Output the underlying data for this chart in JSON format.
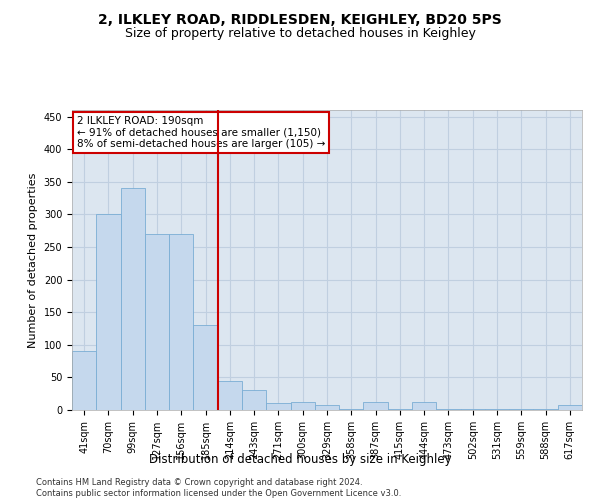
{
  "title": "2, ILKLEY ROAD, RIDDLESDEN, KEIGHLEY, BD20 5PS",
  "subtitle": "Size of property relative to detached houses in Keighley",
  "xlabel": "Distribution of detached houses by size in Keighley",
  "ylabel": "Number of detached properties",
  "categories": [
    "41sqm",
    "70sqm",
    "99sqm",
    "127sqm",
    "156sqm",
    "185sqm",
    "214sqm",
    "243sqm",
    "271sqm",
    "300sqm",
    "329sqm",
    "358sqm",
    "387sqm",
    "415sqm",
    "444sqm",
    "473sqm",
    "502sqm",
    "531sqm",
    "559sqm",
    "588sqm",
    "617sqm"
  ],
  "values": [
    90,
    300,
    340,
    270,
    270,
    130,
    45,
    30,
    10,
    12,
    8,
    1,
    12,
    1,
    12,
    1,
    1,
    1,
    1,
    1,
    8
  ],
  "bar_color": "#c5d8ed",
  "bar_edge_color": "#7aadd4",
  "vline_x": 5.5,
  "vline_color": "#cc0000",
  "annotation_text": "2 ILKLEY ROAD: 190sqm\n← 91% of detached houses are smaller (1,150)\n8% of semi-detached houses are larger (105) →",
  "annotation_box_color": "#ffffff",
  "annotation_box_edge_color": "#cc0000",
  "ylim": [
    0,
    460
  ],
  "yticks": [
    0,
    50,
    100,
    150,
    200,
    250,
    300,
    350,
    400,
    450
  ],
  "background_color": "#dce6f0",
  "grid_color": "#c0cfe0",
  "footer_text": "Contains HM Land Registry data © Crown copyright and database right 2024.\nContains public sector information licensed under the Open Government Licence v3.0.",
  "title_fontsize": 10,
  "subtitle_fontsize": 9,
  "tick_fontsize": 7,
  "ylabel_fontsize": 8,
  "xlabel_fontsize": 8.5,
  "annotation_fontsize": 7.5
}
